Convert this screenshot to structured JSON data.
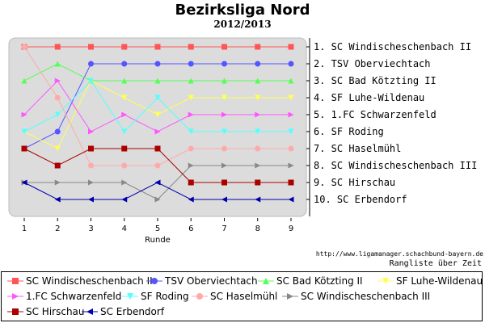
{
  "chart_data": {
    "type": "line",
    "title": "Bezirksliga Nord",
    "subtitle": "2012/2013",
    "xlabel": "Runde",
    "x": [
      1,
      2,
      3,
      4,
      5,
      6,
      7,
      8,
      9
    ],
    "ylim": [
      1,
      10
    ],
    "y_inverted": true,
    "grid": false,
    "source_note": "http://www.ligamanager.schachbund-bayern.de",
    "subnote": "Rangliste über Zeit",
    "rank_labels": [
      "1. SC Windischeschenbach II",
      "2. TSV Oberviechtach",
      "3. SC Bad Kötzting II",
      "4. SF Luhe-Wildenau",
      "5. 1.FC Schwarzenfeld",
      "6. SF Roding",
      "7. SC Haselmühl",
      "8. SC Windischeschenbach III",
      "9. SC Hirschau",
      "10. SC Erbendorf"
    ],
    "series": [
      {
        "name": "SC Windischeschenbach II",
        "color": "#ff5555",
        "marker": "square",
        "values": [
          1,
          1,
          1,
          1,
          1,
          1,
          1,
          1,
          1
        ]
      },
      {
        "name": "TSV Oberviechtach",
        "color": "#5555ff",
        "marker": "circle",
        "values": [
          7,
          6,
          2,
          2,
          2,
          2,
          2,
          2,
          2
        ]
      },
      {
        "name": "SC Bad Kötzting II",
        "color": "#55ff55",
        "marker": "triangle-up",
        "values": [
          3,
          2,
          3,
          3,
          3,
          3,
          3,
          3,
          3
        ]
      },
      {
        "name": "SF Luhe-Wildenau",
        "color": "#ffff55",
        "marker": "triangle-down",
        "values": [
          6,
          7,
          3,
          4,
          5,
          4,
          4,
          4,
          4
        ]
      },
      {
        "name": "1.FC Schwarzenfeld",
        "color": "#ff55ff",
        "marker": "triangle-right",
        "values": [
          5,
          3,
          6,
          5,
          6,
          5,
          5,
          5,
          5
        ]
      },
      {
        "name": "SF Roding",
        "color": "#55ffff",
        "marker": "triangle-down",
        "values": [
          6,
          5,
          3,
          6,
          4,
          6,
          6,
          6,
          6
        ]
      },
      {
        "name": "SC Haselmühl",
        "color": "#ffaaaa",
        "marker": "circle",
        "values": [
          1,
          4,
          8,
          8,
          8,
          7,
          7,
          7,
          7
        ]
      },
      {
        "name": "SC Windischeschenbach III",
        "color": "#888888",
        "marker": "triangle-right",
        "values": [
          9,
          9,
          9,
          9,
          10,
          8,
          8,
          8,
          8
        ]
      },
      {
        "name": "SC Hirschau",
        "color": "#aa0000",
        "marker": "square",
        "values": [
          7,
          8,
          7,
          7,
          7,
          9,
          9,
          9,
          9
        ]
      },
      {
        "name": "SC Erbendorf",
        "color": "#0000aa",
        "marker": "triangle-left",
        "values": [
          9,
          10,
          10,
          10,
          9,
          10,
          10,
          10,
          10
        ]
      }
    ]
  }
}
